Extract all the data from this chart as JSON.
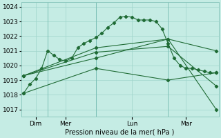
{
  "bg_color": "#c5ece4",
  "grid_color": "#9fd4cb",
  "line_color": "#1f6b35",
  "xlabel": "Pression niveau de la mer( hPa )",
  "ylim": [
    1016.5,
    1024.3
  ],
  "yticks": [
    1017,
    1018,
    1019,
    1020,
    1021,
    1022,
    1023,
    1024
  ],
  "xlim": [
    -0.2,
    16.2
  ],
  "xtick_positions": [
    1,
    3.5,
    9,
    13.5
  ],
  "xtick_labels": [
    "Dim",
    "Mer",
    "Lun",
    "Mar"
  ],
  "vline_positions": [
    2,
    6,
    12
  ],
  "line1_x": [
    0,
    0.5,
    1,
    1.5,
    2,
    2.5,
    3,
    3.5,
    4,
    4.5,
    5,
    5.5,
    6,
    6.5,
    7,
    7.5,
    8,
    8.5,
    9,
    9.5,
    10,
    10.5,
    11,
    11.5,
    12,
    12.5,
    13,
    13.5,
    14,
    14.5,
    15,
    15.5,
    16
  ],
  "line1_y": [
    1018.1,
    1018.7,
    1019.1,
    1019.8,
    1021.0,
    1020.7,
    1020.4,
    1020.3,
    1020.5,
    1021.2,
    1021.5,
    1021.7,
    1021.9,
    1022.2,
    1022.6,
    1022.9,
    1023.3,
    1023.35,
    1023.3,
    1023.1,
    1023.1,
    1023.1,
    1023.0,
    1022.5,
    1021.5,
    1020.5,
    1020.0,
    1019.8,
    1019.8,
    1019.7,
    1019.6,
    1019.5,
    1019.5
  ],
  "line2_x": [
    0,
    6,
    12,
    16
  ],
  "line2_y": [
    1019.3,
    1021.2,
    1021.8,
    1017.0
  ],
  "line3_x": [
    0,
    6,
    12,
    16
  ],
  "line3_y": [
    1019.3,
    1020.9,
    1021.3,
    1018.6
  ],
  "line4_x": [
    0,
    6,
    12,
    16
  ],
  "line4_y": [
    1019.3,
    1020.5,
    1021.8,
    1021.0
  ],
  "line5_x": [
    0,
    6,
    12,
    16
  ],
  "line5_y": [
    1018.1,
    1019.8,
    1019.0,
    1019.5
  ]
}
